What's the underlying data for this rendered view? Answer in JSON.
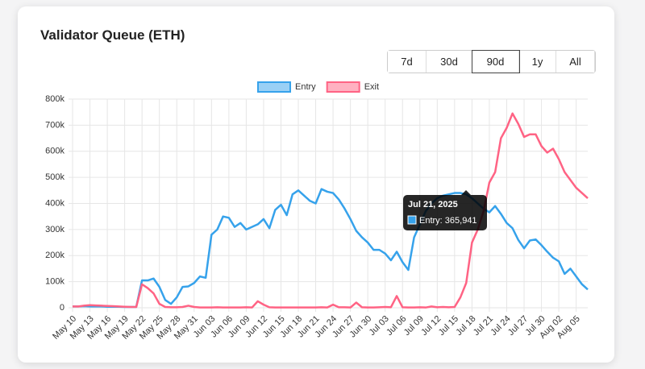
{
  "range_buttons": [
    "7d",
    "30d",
    "90d",
    "1y",
    "All"
  ],
  "active_range": 2,
  "chart_data": {
    "type": "line",
    "title": "Validator Queue (ETH)",
    "categories": [
      "May 10",
      null,
      null,
      "May 13",
      null,
      null,
      "May 16",
      null,
      null,
      "May 19",
      null,
      null,
      "May 22",
      null,
      null,
      "May 25",
      null,
      null,
      "May 28",
      null,
      null,
      "May 31",
      null,
      null,
      "Jun 03",
      null,
      null,
      "Jun 06",
      null,
      null,
      "Jun 09",
      null,
      null,
      "Jun 12",
      null,
      null,
      "Jun 15",
      null,
      null,
      "Jun 18",
      null,
      null,
      "Jun 21",
      null,
      null,
      "Jun 24",
      null,
      null,
      "Jun 27",
      null,
      null,
      "Jun 30",
      null,
      null,
      "Jul 03",
      null,
      null,
      "Jul 06",
      null,
      null,
      "Jul 09",
      null,
      null,
      "Jul 12",
      null,
      null,
      "Jul 15",
      null,
      null,
      "Jul 18",
      null,
      null,
      "Jul 21",
      null,
      null,
      "Jul 24",
      null,
      null,
      "Jul 27",
      null,
      null,
      "Jul 30",
      null,
      null,
      "Aug 02",
      null,
      null,
      "Aug 05",
      null,
      null
    ],
    "series": [
      {
        "name": "Entry",
        "color": "#36a2eb",
        "values": [
          5000,
          5000,
          6000,
          5000,
          5000,
          5000,
          4000,
          4000,
          4000,
          3000,
          3000,
          3000,
          105000,
          105000,
          112000,
          80000,
          30000,
          15000,
          40000,
          80000,
          82000,
          95000,
          120000,
          115000,
          280000,
          300000,
          350000,
          345000,
          310000,
          325000,
          300000,
          310000,
          320000,
          340000,
          305000,
          375000,
          395000,
          355000,
          435000,
          450000,
          430000,
          410000,
          400000,
          455000,
          445000,
          440000,
          415000,
          380000,
          340000,
          295000,
          270000,
          250000,
          222000,
          222000,
          208000,
          182000,
          215000,
          175000,
          145000,
          270000,
          320000,
          370000,
          400000,
          420000,
          430000,
          435000,
          440000,
          440000,
          435000,
          420000,
          400000,
          380000,
          365941,
          390000,
          360000,
          325000,
          305000,
          260000,
          228000,
          258000,
          262000,
          240000,
          215000,
          192000,
          178000,
          130000,
          150000,
          120000,
          90000,
          70000
        ]
      },
      {
        "name": "Exit",
        "color": "#ff6384",
        "values": [
          5000,
          5000,
          8000,
          10000,
          9000,
          8000,
          7000,
          6000,
          5000,
          4000,
          3000,
          3000,
          90000,
          75000,
          55000,
          15000,
          3000,
          2000,
          2000,
          3000,
          8000,
          3000,
          1000,
          1000,
          1000,
          2000,
          1000,
          1000,
          1000,
          1000,
          2000,
          1000,
          25000,
          12000,
          2000,
          1000,
          1000,
          1000,
          1000,
          1000,
          1000,
          1000,
          1000,
          2000,
          1000,
          12000,
          2000,
          2000,
          1000,
          20000,
          2000,
          1000,
          1000,
          2000,
          3000,
          2000,
          45000,
          2000,
          1000,
          1000,
          2000,
          1000,
          5000,
          2000,
          3000,
          2000,
          3000,
          40000,
          95000,
          250000,
          300000,
          370000,
          480000,
          520000,
          650000,
          690000,
          745000,
          705000,
          655000,
          665000,
          665000,
          620000,
          595000,
          610000,
          570000,
          520000,
          490000,
          460000,
          440000,
          420000
        ]
      }
    ],
    "ylim": [
      0,
      800000
    ],
    "yticks": [
      {
        "value": 0,
        "label": "0"
      },
      {
        "value": 100000,
        "label": "100k"
      },
      {
        "value": 200000,
        "label": "200k"
      },
      {
        "value": 300000,
        "label": "300k"
      },
      {
        "value": 400000,
        "label": "400k"
      },
      {
        "value": 500000,
        "label": "500k"
      },
      {
        "value": 600000,
        "label": "600k"
      },
      {
        "value": 700000,
        "label": "700k"
      },
      {
        "value": 800000,
        "label": "800k"
      }
    ],
    "grid": true,
    "legend": "top",
    "tooltip": {
      "index": 72,
      "title": "Jul 21, 2025",
      "label": "Entry: 365,941"
    }
  }
}
